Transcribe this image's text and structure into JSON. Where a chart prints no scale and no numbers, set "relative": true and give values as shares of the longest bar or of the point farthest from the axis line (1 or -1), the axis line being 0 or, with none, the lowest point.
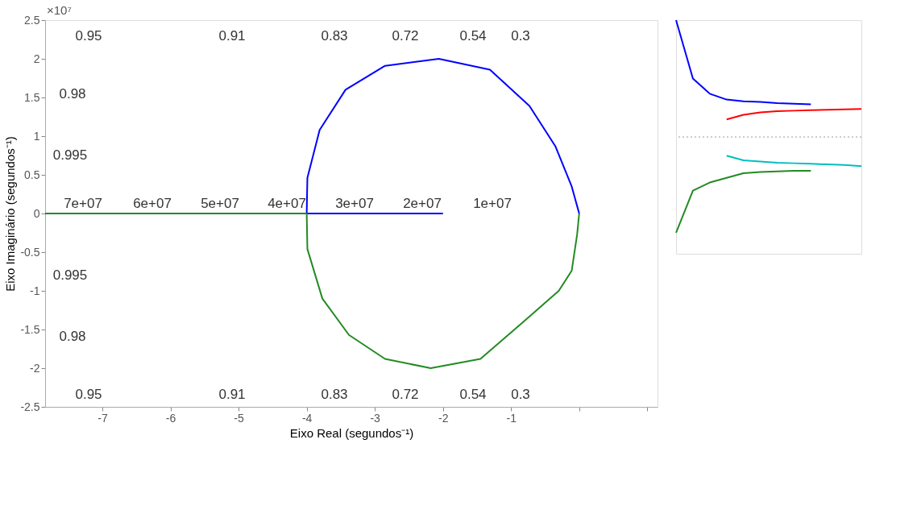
{
  "chart_data": [
    {
      "type": "line",
      "xlabel": "Eixo Real (segundos⁻¹)",
      "ylabel": "Eixo Imaginário (segundos⁻¹)",
      "xlim": [
        -7.84,
        1.15
      ],
      "xticks": [
        -7,
        -6,
        -5,
        -4,
        -3,
        -2,
        -1,
        {
          "value": 0,
          "label": null
        },
        {
          "value": 1,
          "label": null
        }
      ],
      "ylim": [
        -2.5,
        2.5
      ],
      "yticks": [
        -2.5,
        -2,
        -1.5,
        -1,
        -0.5,
        0,
        0.5,
        1,
        1.5,
        2,
        2.5
      ],
      "grid": false,
      "marker": "none",
      "line_style": "solid",
      "series": [
        {
          "color": "#0000ff",
          "x": [
            -2,
            -4,
            -3.99,
            -3.81,
            -3.43,
            -2.85,
            -2.06,
            -1.31,
            -0.73,
            -0.35,
            -0.11,
            0
          ],
          "values": [
            0,
            0,
            0.46,
            1.08,
            1.6,
            1.91,
            2.0,
            1.86,
            1.39,
            0.87,
            0.35,
            0
          ]
        },
        {
          "color": "#228b22",
          "x": [
            -7.84,
            -4,
            -3.99,
            -3.77,
            -3.38,
            -2.85,
            -2.18,
            -1.45,
            -0.83,
            -0.3,
            -0.11,
            -0.03,
            0
          ],
          "values": [
            0,
            0,
            -0.46,
            -1.1,
            -1.57,
            -1.88,
            -2.0,
            -1.88,
            -1.41,
            -1.0,
            -0.74,
            -0.27,
            0
          ]
        }
      ],
      "annotations": [
        "×10⁷",
        "0.95",
        "0.91",
        "0.83",
        "0.72",
        "0.54",
        "0.3",
        "0.98",
        "0.995",
        "0.995",
        "0.98",
        "0.95",
        "0.91",
        "0.83",
        "0.72",
        "0.54",
        "0.3",
        "7e+07",
        "6e+07",
        "5e+07",
        "4e+07",
        "3e+07",
        "2e+07",
        "1e+07"
      ]
    },
    {
      "type": "line",
      "relative": true,
      "marker": "none",
      "line_style": "solid",
      "tick_labels": false,
      "categories": [
        null,
        null,
        null,
        null,
        null,
        null,
        null,
        null,
        null,
        null,
        null,
        null
      ],
      "ref_lines": [
        {
          "axis": "y",
          "value": 0,
          "color": "#999999",
          "line_style": "dotted"
        }
      ],
      "series": [
        {
          "color": "#0000ff",
          "values": [
            1.0,
            0.5,
            0.37,
            0.32,
            0.305,
            0.3,
            0.29,
            0.285,
            0.28,
            null,
            null,
            null
          ]
        },
        {
          "color": "#ff0000",
          "values": [
            null,
            null,
            null,
            0.15,
            0.19,
            0.21,
            0.22,
            0.225,
            0.23,
            0.233,
            0.237,
            0.24
          ]
        },
        {
          "color": "#00bfbf",
          "values": [
            null,
            null,
            null,
            -0.16,
            -0.2,
            -0.21,
            -0.22,
            -0.225,
            -0.23,
            -0.235,
            -0.24,
            -0.25
          ]
        },
        {
          "color": "#228b22",
          "values": [
            -0.82,
            -0.46,
            -0.39,
            -0.35,
            -0.31,
            -0.3,
            -0.295,
            -0.29,
            -0.29,
            null,
            null,
            null
          ]
        }
      ]
    }
  ]
}
